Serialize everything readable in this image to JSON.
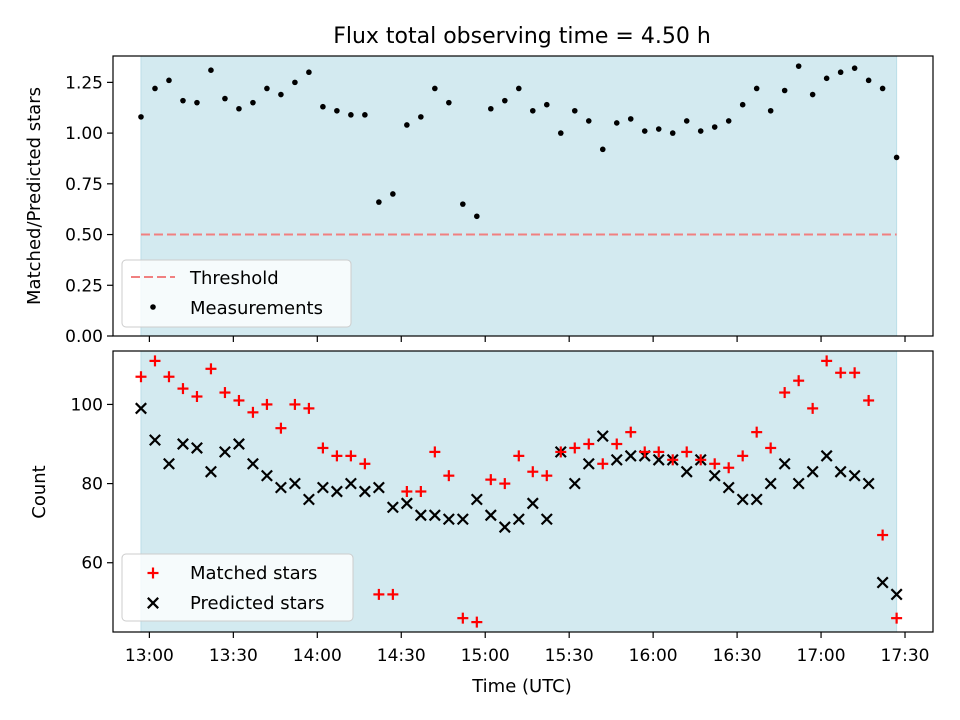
{
  "colors": {
    "observing_span": "#d3eaf0",
    "threshold": "#f08080",
    "measurement": "#000000",
    "matched": "#ff0000",
    "predicted": "#000000"
  },
  "chart_data": [
    {
      "type": "scatter",
      "title": "Flux total observing time = 4.50 h",
      "xlabel": "",
      "ylabel": "Matched/Predicted stars",
      "xlim": [
        "12:47",
        "17:40"
      ],
      "ylim": [
        0,
        1.38
      ],
      "yticks": [
        "0.00",
        "0.25",
        "0.50",
        "0.75",
        "1.00",
        "1.25"
      ],
      "shaded_span": [
        "12:57",
        "17:27"
      ],
      "threshold": {
        "name": "Threshold",
        "value": 0.5,
        "style": "dashed"
      },
      "legend": {
        "position": "lower-left",
        "entries": [
          "Threshold",
          "Measurements"
        ]
      },
      "series": [
        {
          "name": "Measurements",
          "marker": "dot",
          "x": [
            "12:57",
            "13:02",
            "13:07",
            "13:12",
            "13:17",
            "13:22",
            "13:27",
            "13:32",
            "13:37",
            "13:42",
            "13:47",
            "13:52",
            "13:57",
            "14:02",
            "14:07",
            "14:12",
            "14:17",
            "14:22",
            "14:27",
            "14:32",
            "14:37",
            "14:42",
            "14:47",
            "14:52",
            "14:57",
            "15:02",
            "15:07",
            "15:12",
            "15:17",
            "15:22",
            "15:27",
            "15:32",
            "15:37",
            "15:42",
            "15:47",
            "15:52",
            "15:57",
            "16:02",
            "16:07",
            "16:12",
            "16:17",
            "16:22",
            "16:27",
            "16:32",
            "16:37",
            "16:42",
            "16:47",
            "16:52",
            "16:57",
            "17:02",
            "17:07",
            "17:12",
            "17:17",
            "17:22",
            "17:27"
          ],
          "y": [
            1.08,
            1.22,
            1.26,
            1.16,
            1.15,
            1.31,
            1.17,
            1.12,
            1.15,
            1.22,
            1.19,
            1.25,
            1.3,
            1.13,
            1.11,
            1.09,
            1.09,
            0.66,
            0.7,
            1.04,
            1.08,
            1.22,
            1.15,
            0.65,
            0.59,
            1.12,
            1.16,
            1.22,
            1.11,
            1.14,
            1.0,
            1.11,
            1.06,
            0.92,
            1.05,
            1.07,
            1.01,
            1.02,
            1.0,
            1.06,
            1.01,
            1.03,
            1.06,
            1.14,
            1.22,
            1.11,
            1.21,
            1.33,
            1.19,
            1.27,
            1.3,
            1.32,
            1.26,
            1.22,
            0.88
          ]
        }
      ]
    },
    {
      "type": "scatter",
      "title": "",
      "xlabel": "Time (UTC)",
      "ylabel": "Count",
      "xlim": [
        "12:47",
        "17:40"
      ],
      "ylim": [
        42.5,
        113.5
      ],
      "yticks": [
        "60",
        "80",
        "100"
      ],
      "xticks": [
        "13:00",
        "13:30",
        "14:00",
        "14:30",
        "15:00",
        "15:30",
        "16:00",
        "16:30",
        "17:00",
        "17:30"
      ],
      "shaded_span": [
        "12:57",
        "17:27"
      ],
      "legend": {
        "position": "lower-left",
        "entries": [
          "Matched stars",
          "Predicted stars"
        ]
      },
      "series": [
        {
          "name": "Matched stars",
          "marker": "plus",
          "x": [
            "12:57",
            "13:02",
            "13:07",
            "13:12",
            "13:17",
            "13:22",
            "13:27",
            "13:32",
            "13:37",
            "13:42",
            "13:47",
            "13:52",
            "13:57",
            "14:02",
            "14:07",
            "14:12",
            "14:17",
            "14:22",
            "14:27",
            "14:32",
            "14:37",
            "14:42",
            "14:47",
            "14:52",
            "14:57",
            "15:02",
            "15:07",
            "15:12",
            "15:17",
            "15:22",
            "15:27",
            "15:32",
            "15:37",
            "15:42",
            "15:47",
            "15:52",
            "15:57",
            "16:02",
            "16:07",
            "16:12",
            "16:17",
            "16:22",
            "16:27",
            "16:32",
            "16:37",
            "16:42",
            "16:47",
            "16:52",
            "16:57",
            "17:02",
            "17:07",
            "17:12",
            "17:17",
            "17:22",
            "17:27"
          ],
          "y": [
            107,
            111,
            107,
            104,
            102,
            109,
            103,
            101,
            98,
            100,
            94,
            100,
            99,
            89,
            87,
            87,
            85,
            52,
            52,
            78,
            78,
            88,
            82,
            46,
            45,
            81,
            80,
            87,
            83,
            82,
            88,
            89,
            90,
            85,
            90,
            93,
            88,
            88,
            86,
            88,
            86,
            85,
            84,
            87,
            93,
            89,
            103,
            106,
            99,
            111,
            108,
            108,
            101,
            67,
            46
          ]
        },
        {
          "name": "Predicted stars",
          "marker": "x",
          "x": [
            "12:57",
            "13:02",
            "13:07",
            "13:12",
            "13:17",
            "13:22",
            "13:27",
            "13:32",
            "13:37",
            "13:42",
            "13:47",
            "13:52",
            "13:57",
            "14:02",
            "14:07",
            "14:12",
            "14:17",
            "14:22",
            "14:27",
            "14:32",
            "14:37",
            "14:42",
            "14:47",
            "14:52",
            "14:57",
            "15:02",
            "15:07",
            "15:12",
            "15:17",
            "15:22",
            "15:27",
            "15:32",
            "15:37",
            "15:42",
            "15:47",
            "15:52",
            "15:57",
            "16:02",
            "16:07",
            "16:12",
            "16:17",
            "16:22",
            "16:27",
            "16:32",
            "16:37",
            "16:42",
            "16:47",
            "16:52",
            "16:57",
            "17:02",
            "17:07",
            "17:12",
            "17:17",
            "17:22",
            "17:27"
          ],
          "y": [
            99,
            91,
            85,
            90,
            89,
            83,
            88,
            90,
            85,
            82,
            79,
            80,
            76,
            79,
            78,
            80,
            78,
            79,
            74,
            75,
            72,
            72,
            71,
            71,
            76,
            72,
            69,
            71,
            75,
            71,
            88,
            80,
            85,
            92,
            86,
            87,
            87,
            86,
            86,
            83,
            86,
            82,
            79,
            76,
            76,
            80,
            85,
            80,
            83,
            87,
            83,
            82,
            80,
            55,
            52
          ]
        }
      ]
    }
  ]
}
